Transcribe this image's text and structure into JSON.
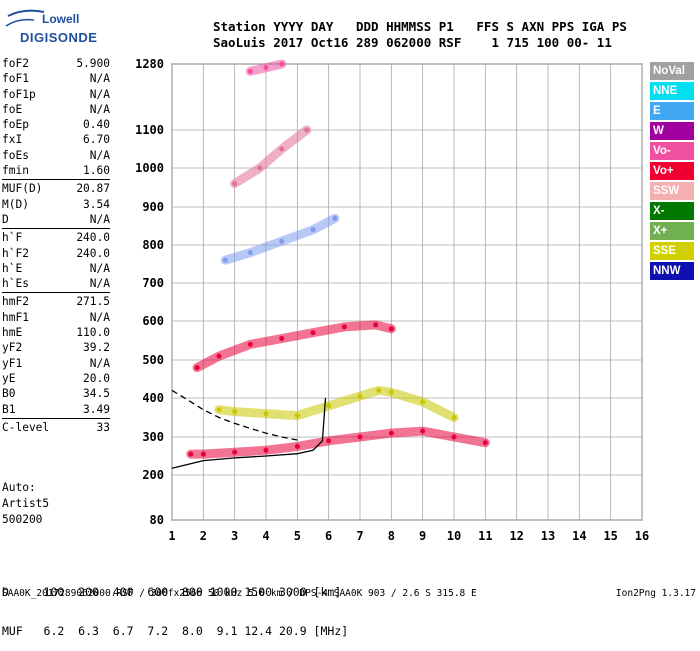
{
  "logo": {
    "line1": "Lowell",
    "line2": "DIGISONDE"
  },
  "header": {
    "line1": "Station YYYY DAY   DDD HHMMSS P1   FFS S AXN PPS IGA PS",
    "line2": "SaoLuis 2017 Oct16 289 062000 RSF    1 715 100 00- 11"
  },
  "params": [
    {
      "key": "foF2",
      "value": "5.900"
    },
    {
      "key": "foF1",
      "value": "N/A"
    },
    {
      "key": "foF1p",
      "value": "N/A"
    },
    {
      "key": "foE",
      "value": "N/A"
    },
    {
      "key": "foEp",
      "value": "0.40"
    },
    {
      "key": "fxI",
      "value": "6.70"
    },
    {
      "key": "foEs",
      "value": "N/A"
    },
    {
      "key": "fmin",
      "value": "1.60"
    },
    {
      "key": "MUF(D)",
      "value": "20.87"
    },
    {
      "key": "M(D)",
      "value": "3.54"
    },
    {
      "key": "D",
      "value": "N/A"
    },
    {
      "key": "h`F",
      "value": "240.0"
    },
    {
      "key": "h`F2",
      "value": "240.0"
    },
    {
      "key": "h`E",
      "value": "N/A"
    },
    {
      "key": "h`Es",
      "value": "N/A"
    },
    {
      "key": "hmF2",
      "value": "271.5"
    },
    {
      "key": "hmF1",
      "value": "N/A"
    },
    {
      "key": "hmE",
      "value": "110.0"
    },
    {
      "key": "yF2",
      "value": "39.2"
    },
    {
      "key": "yF1",
      "value": "N/A"
    },
    {
      "key": "yE",
      "value": "20.0"
    },
    {
      "key": "B0",
      "value": "34.5"
    },
    {
      "key": "B1",
      "value": "3.49"
    },
    {
      "key": "C-level",
      "value": "33"
    }
  ],
  "auto": {
    "line1": "Auto:",
    "line2": "Artist5",
    "line3": "500200"
  },
  "legend": [
    {
      "label": "NoVal",
      "color": "#a0a0a0"
    },
    {
      "label": "NNE",
      "color": "#00e0f0"
    },
    {
      "label": "E",
      "color": "#40a8f0"
    },
    {
      "label": "W",
      "color": "#a000a0"
    },
    {
      "label": "Vo-",
      "color": "#f050a0"
    },
    {
      "label": "Vo+",
      "color": "#f00030"
    },
    {
      "label": "SSW",
      "color": "#f4b0b0"
    },
    {
      "label": "X-",
      "color": "#007800"
    },
    {
      "label": "X+",
      "color": "#70b050"
    },
    {
      "label": "SSE",
      "color": "#d0d000"
    },
    {
      "label": "NNW",
      "color": "#1010b0"
    }
  ],
  "muf_table": {
    "d_row": "D     100  200  400  600  800 1000 1500 3000 [km]",
    "muf_row": "MUF   6.2  6.3  6.7  7.2  8.0  9.1 12.4 20.9 [MHz]"
  },
  "footer": {
    "left": "SAA0K_2017289062000.RSF / 300fx256h 50 kHz 5.0 km / DPS-4 SAA0K 903 / 2.6 S 315.8 E",
    "right": "Ion2Png 1.3.17"
  },
  "chart_data": {
    "type": "scatter",
    "title": "",
    "xlabel": "",
    "ylabel": "",
    "xlim": [
      1,
      16
    ],
    "ylim": [
      80,
      1280
    ],
    "x_unit": "MHz",
    "y_unit": "km",
    "x_ticks": [
      1,
      2,
      3,
      4,
      5,
      6,
      7,
      8,
      9,
      10,
      11,
      12,
      13,
      14,
      15,
      16
    ],
    "y_ticks": [
      80,
      200,
      300,
      400,
      500,
      600,
      700,
      800,
      900,
      1000,
      1100,
      1280
    ],
    "y_scale": "nonlinear-ionogram",
    "grid": true,
    "legend_position": "right",
    "echo_traces": [
      {
        "name": "F-layer 1st hop",
        "x": [
          1.6,
          2.0,
          3.0,
          4.0,
          5.0,
          6.0,
          7.0,
          8.0,
          9.0,
          10.0,
          11.0
        ],
        "y": [
          255,
          255,
          260,
          265,
          275,
          290,
          300,
          310,
          315,
          300,
          285
        ]
      },
      {
        "name": "F-layer spread",
        "x": [
          2.5,
          3.0,
          4.0,
          5.0,
          6.0,
          7.0,
          7.6,
          8.0,
          9.0,
          10.0
        ],
        "y": [
          370,
          365,
          360,
          355,
          380,
          405,
          420,
          415,
          390,
          350
        ]
      },
      {
        "name": "2nd hop",
        "x": [
          1.8,
          2.5,
          3.5,
          4.5,
          5.5,
          6.5,
          7.5,
          8.0
        ],
        "y": [
          480,
          510,
          540,
          555,
          570,
          585,
          590,
          580
        ]
      },
      {
        "name": "3rd hop",
        "x": [
          2.7,
          3.5,
          4.5,
          5.5,
          6.2
        ],
        "y": [
          760,
          780,
          810,
          840,
          870
        ]
      },
      {
        "name": "4th hop",
        "x": [
          3.0,
          3.8,
          4.5,
          5.3
        ],
        "y": [
          960,
          1000,
          1050,
          1100
        ]
      },
      {
        "name": "5th hop",
        "x": [
          3.5,
          4.0,
          4.5
        ],
        "y": [
          1260,
          1270,
          1280
        ]
      }
    ],
    "model_curves": [
      {
        "name": "O-mode profile",
        "style": "solid",
        "x": [
          1.0,
          2.0,
          3.0,
          4.0,
          5.0,
          5.5,
          5.8,
          5.9
        ],
        "y": [
          218,
          238,
          245,
          250,
          256,
          265,
          290,
          400
        ]
      },
      {
        "name": "X-mode profile",
        "style": "dashed",
        "x": [
          1.0,
          1.5,
          2.0,
          2.5,
          3.0,
          3.5,
          4.0,
          4.5,
          5.0
        ],
        "y": [
          420,
          395,
          370,
          350,
          335,
          322,
          310,
          300,
          292
        ]
      }
    ]
  }
}
